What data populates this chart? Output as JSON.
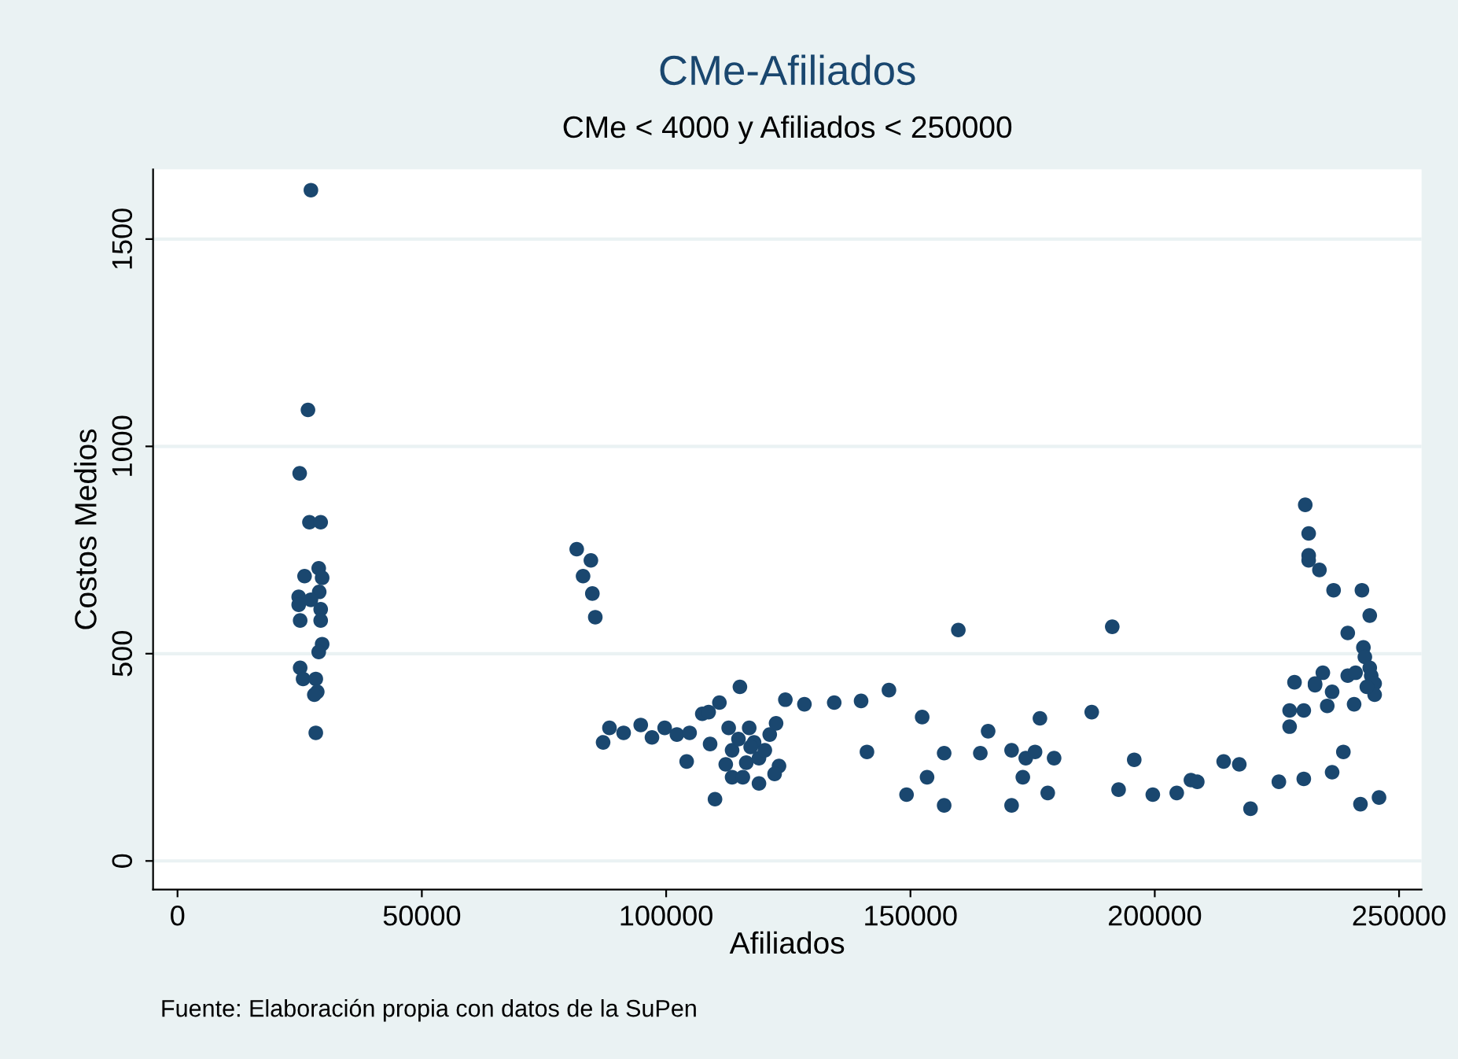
{
  "chart_data": {
    "type": "scatter",
    "title": "CMe-Afiliados",
    "subtitle": "CMe < 4000 y Afiliados < 250000",
    "xlabel": "Afiliados",
    "ylabel": "Costos Medios",
    "annotations": [
      "Fuente: Elaboración propia con datos de la SuPen"
    ],
    "xlim": [
      -5000,
      254600
    ],
    "xticks": [
      0,
      50000,
      100000,
      150000,
      200000,
      250000
    ],
    "ylim": [
      -69,
      1668
    ],
    "yticks": [
      0,
      500,
      1000,
      1500
    ],
    "grid": "y",
    "marker": "circle",
    "legend": false,
    "series": [
      {
        "color": "#1a476f",
        "x": [
          27300,
          26700,
          25000,
          27000,
          29300,
          28900,
          26000,
          29600,
          24800,
          24800,
          29000,
          29300,
          25100,
          29300,
          27300,
          29600,
          28900,
          25100,
          25700,
          28300,
          28600,
          28000,
          28300,
          81700,
          84600,
          83000,
          84900,
          85500,
          87100,
          88400,
          91300,
          94800,
          97100,
          99700,
          102200,
          104800,
          104200,
          107400,
          108700,
          110900,
          115100,
          112800,
          109000,
          110000,
          113500,
          112200,
          113500,
          115700,
          117000,
          118000,
          119000,
          119000,
          120200,
          121200,
          122500,
          123100,
          122200,
          124400,
          128300,
          134400,
          139900,
          141100,
          114800,
          117300,
          116400,
          159800,
          191300,
          145600,
          152400,
          149200,
          153400,
          156900,
          156900,
          165900,
          164300,
          170700,
          170700,
          173000,
          173600,
          175500,
          176500,
          179400,
          178100,
          187100,
          195800,
          192600,
          199600,
          204500,
          207400,
          208700,
          214100,
          217300,
          219600,
          225400,
          230500,
          227600,
          227600,
          230500,
          228600,
          232800,
          230800,
          231500,
          231500,
          231500,
          233700,
          236600,
          242400,
          244000,
          239500,
          242700,
          243000,
          244000,
          244300,
          245000,
          245000,
          243400,
          239500,
          241100,
          234400,
          232800,
          236300,
          235300,
          240800,
          238600,
          236300,
          242100,
          245900
        ],
        "values": [
          1618,
          1088,
          935,
          817,
          817,
          706,
          687,
          683,
          637,
          618,
          649,
          607,
          580,
          580,
          630,
          523,
          504,
          466,
          439,
          439,
          408,
          401,
          309,
          752,
          725,
          687,
          645,
          588,
          286,
          321,
          309,
          328,
          298,
          321,
          305,
          309,
          240,
          355,
          359,
          382,
          420,
          321,
          282,
          149,
          267,
          233,
          202,
          202,
          321,
          286,
          248,
          187,
          267,
          305,
          332,
          229,
          210,
          389,
          378,
          382,
          386,
          263,
          294,
          275,
          237,
          557,
          565,
          412,
          347,
          160,
          202,
          134,
          260,
          313,
          260,
          267,
          134,
          202,
          248,
          263,
          344,
          248,
          164,
          359,
          244,
          172,
          160,
          164,
          195,
          191,
          240,
          233,
          126,
          191,
          198,
          324,
          363,
          363,
          431,
          424,
          859,
          790,
          737,
          725,
          702,
          653,
          653,
          592,
          550,
          515,
          492,
          466,
          447,
          428,
          401,
          420,
          447,
          454,
          454,
          428,
          408,
          374,
          378,
          263,
          214,
          137,
          153
        ]
      }
    ]
  }
}
